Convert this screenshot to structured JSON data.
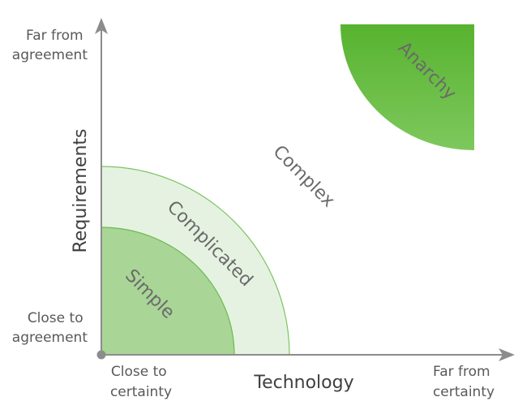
{
  "axes": {
    "x_title": "Technology",
    "y_title": "Requirements",
    "x_min_label": [
      "Close to",
      "certainty"
    ],
    "x_max_label": [
      "Far from",
      "certainty"
    ],
    "y_min_label": [
      "Close to",
      "agreement"
    ],
    "y_max_label": [
      "Far from",
      "agreement"
    ]
  },
  "regions": {
    "simple": "Simple",
    "complicated": "Complicated",
    "complex": "Complex",
    "anarchy": "Anarchy"
  },
  "colors": {
    "axis": "#8c8c8c",
    "simple_fill": "#a9d597",
    "simple_stroke": "#6cbb4f",
    "complicated_fill": "#e6f2e1",
    "complicated_stroke": "#7cc463",
    "anarchy_top": "#57b32f",
    "anarchy_bottom": "#7ec85d"
  }
}
